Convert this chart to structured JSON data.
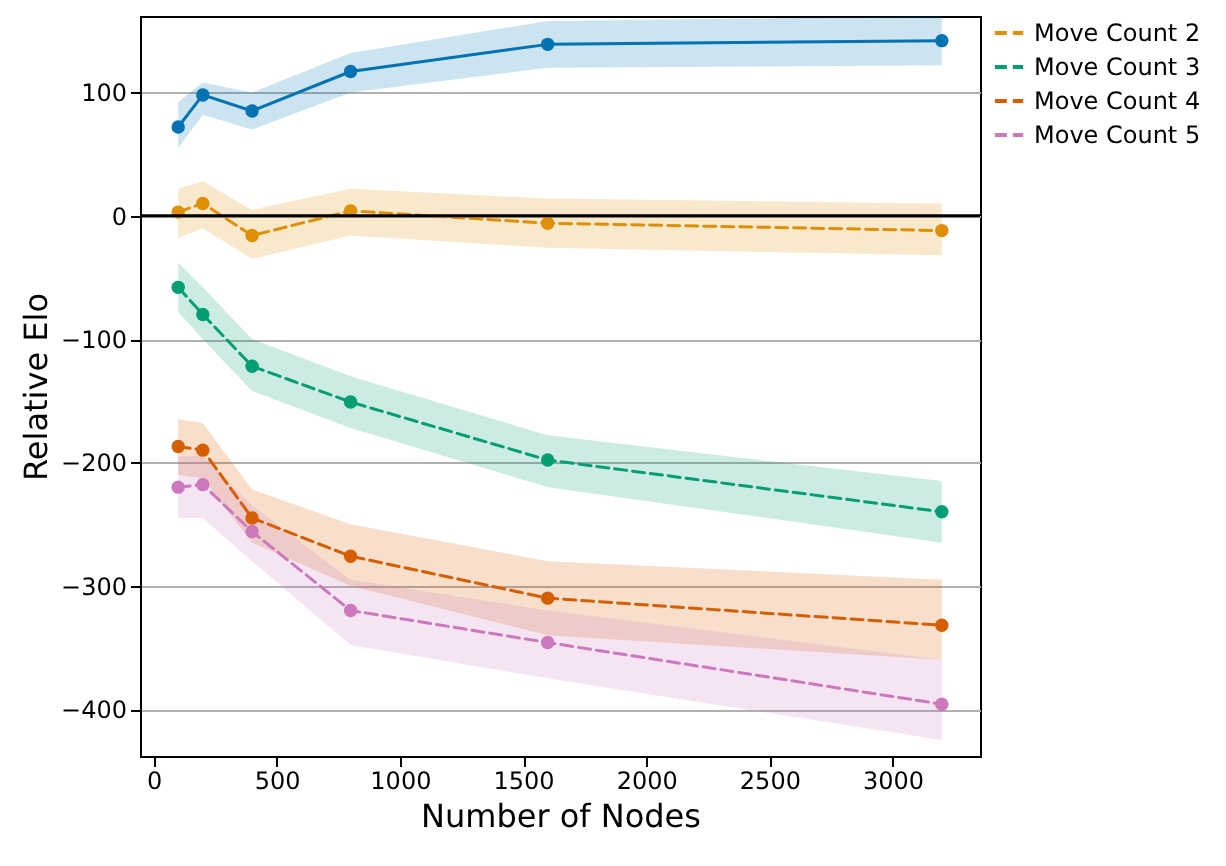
{
  "chart_data": {
    "type": "line",
    "xlabel": "Number of Nodes",
    "ylabel": "Relative Elo",
    "x": [
      100,
      200,
      400,
      800,
      1600,
      3200
    ],
    "series": [
      {
        "color": "#0173b2",
        "line_style": "solid",
        "values": [
          72,
          98,
          85,
          117,
          139,
          142
        ],
        "lower": [
          55,
          82,
          70,
          100,
          120,
          122
        ],
        "upper": [
          92,
          108,
          100,
          132,
          158,
          162
        ]
      },
      {
        "name": "Move Count 2",
        "color": "#de8f05",
        "line_style": "dashed",
        "values": [
          3,
          10,
          -16,
          4,
          -6,
          -12
        ],
        "lower": [
          -18,
          -10,
          -35,
          -16,
          -26,
          -32
        ],
        "upper": [
          22,
          28,
          5,
          22,
          14,
          10
        ]
      },
      {
        "name": "Move Count 3",
        "color": "#029e73",
        "line_style": "dashed",
        "values": [
          -58,
          -80,
          -122,
          -151,
          -198,
          -240
        ],
        "lower": [
          -78,
          -100,
          -142,
          -172,
          -220,
          -265
        ],
        "upper": [
          -38,
          -58,
          -100,
          -130,
          -178,
          -215
        ]
      },
      {
        "name": "Move Count 4",
        "color": "#d55e00",
        "line_style": "dashed",
        "values": [
          -187,
          -190,
          -245,
          -276,
          -310,
          -332
        ],
        "lower": [
          -210,
          -213,
          -265,
          -300,
          -340,
          -360
        ],
        "upper": [
          -165,
          -168,
          -222,
          -250,
          -280,
          -295
        ]
      },
      {
        "name": "Move Count 5",
        "color": "#cc78bc",
        "line_style": "dashed",
        "values": [
          -220,
          -218,
          -256,
          -320,
          -346,
          -396
        ],
        "lower": [
          -245,
          -245,
          -280,
          -348,
          -375,
          -425
        ],
        "upper": [
          -195,
          -195,
          -235,
          -295,
          -320,
          -360
        ]
      }
    ],
    "xlim": [
      -55,
      3355
    ],
    "xticks": [
      0,
      500,
      1000,
      1500,
      2000,
      2500,
      3000
    ],
    "ylim": [
      -438,
      162
    ],
    "yticks": [
      -400,
      -300,
      -200,
      -100,
      0,
      100
    ],
    "ref_lines": [
      {
        "axis": "y",
        "value": 0,
        "color": "#000000",
        "line_style": "solid"
      }
    ],
    "grid": "y",
    "marker": "circle",
    "legend": "right"
  }
}
